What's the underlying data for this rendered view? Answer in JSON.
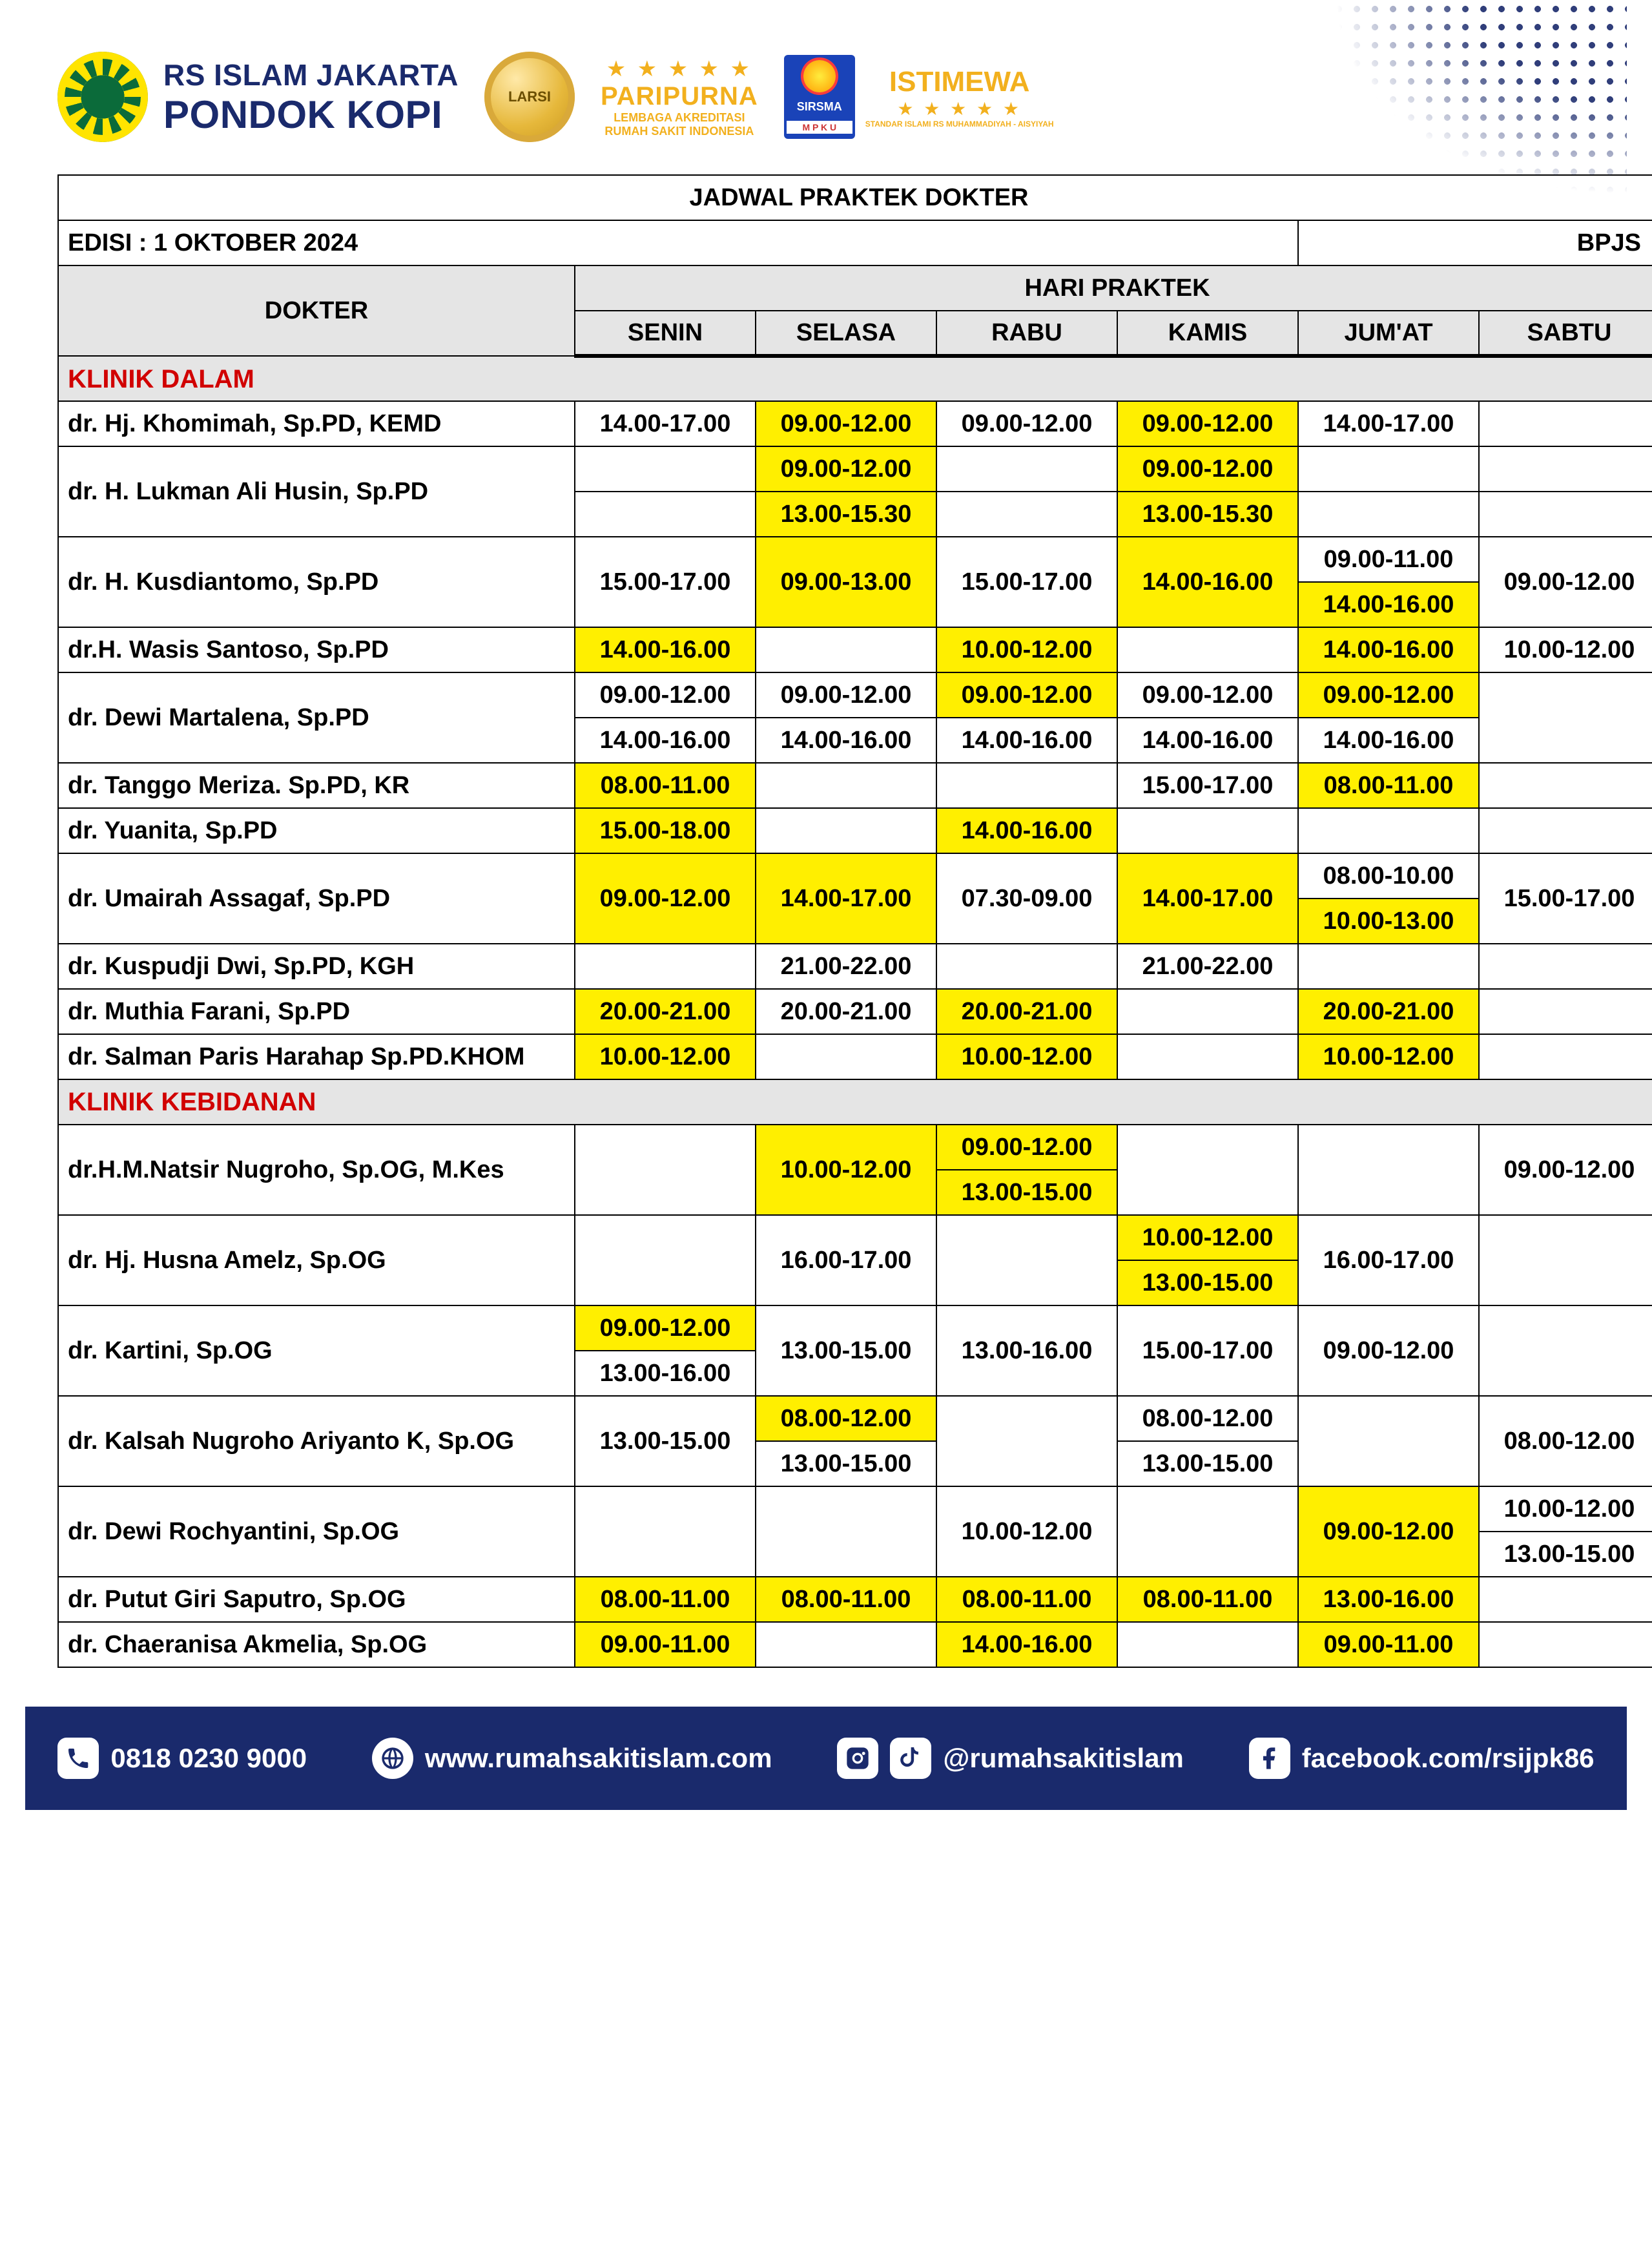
{
  "hospital": {
    "line1": "RS ISLAM JAKARTA",
    "line2": "PONDOK KOPI"
  },
  "accred": {
    "medal": "LARSI",
    "title": "PARIPURNA",
    "sub1": "LEMBAGA AKREDITASI",
    "sub2": "RUMAH SAKIT INDONESIA"
  },
  "sirsma": {
    "l1": "SIRSMA",
    "l2": "M P K U",
    "istimewa": "ISTIMEWA",
    "sub": "STANDAR ISLAMI RS MUHAMMADIYAH - AISYIYAH"
  },
  "table": {
    "title": "JADWAL PRAKTEK DOKTER",
    "edisi": "EDISI : 1 OKTOBER 2024",
    "bpjs": "BPJS",
    "dokter_hdr": "DOKTER",
    "hari_hdr": "HARI PRAKTEK",
    "days": [
      "SENIN",
      "SELASA",
      "RABU",
      "KAMIS",
      "JUM'AT",
      "SABTU"
    ],
    "highlight_color": "#ffef00",
    "header_bg": "#e5e5e5",
    "section_color": "#d10000",
    "sections": [
      {
        "name": "KLINIK DALAM",
        "rows": [
          {
            "doctor": "dr. Hj. Khomimah, Sp.PD, KEMD",
            "span": 1,
            "cells": [
              [
                "14.00-17.00",
                0
              ],
              [
                "09.00-12.00",
                1
              ],
              [
                "09.00-12.00",
                0
              ],
              [
                "09.00-12.00",
                1
              ],
              [
                "14.00-17.00",
                0
              ],
              [
                "",
                0
              ]
            ]
          },
          {
            "doctor": "dr. H. Lukman Ali Husin, Sp.PD",
            "span": 2,
            "lines": [
              [
                [
                  "",
                  0
                ],
                [
                  "09.00-12.00",
                  1
                ],
                [
                  "",
                  0
                ],
                [
                  "09.00-12.00",
                  1
                ],
                [
                  "",
                  0
                ],
                [
                  "",
                  0
                ]
              ],
              [
                [
                  "",
                  0
                ],
                [
                  "13.00-15.30",
                  1
                ],
                [
                  "",
                  0
                ],
                [
                  "13.00-15.30",
                  1
                ],
                [
                  "",
                  0
                ],
                [
                  "",
                  0
                ]
              ]
            ]
          },
          {
            "doctor": "dr. H. Kusdiantomo, Sp.PD",
            "span": 2,
            "lines": [
              [
                [
                  "15.00-17.00",
                  0,
                  2
                ],
                [
                  "09.00-13.00",
                  1,
                  2
                ],
                [
                  "15.00-17.00",
                  0,
                  2
                ],
                [
                  "14.00-16.00",
                  1,
                  2
                ],
                [
                  "09.00-11.00",
                  0
                ],
                [
                  "09.00-12.00",
                  0,
                  2
                ]
              ],
              [
                null,
                null,
                null,
                null,
                [
                  "14.00-16.00",
                  1
                ],
                null
              ]
            ]
          },
          {
            "doctor": "dr.H. Wasis Santoso, Sp.PD",
            "span": 1,
            "cells": [
              [
                "14.00-16.00",
                1
              ],
              [
                "",
                0
              ],
              [
                "10.00-12.00",
                1
              ],
              [
                "",
                0
              ],
              [
                "14.00-16.00",
                1
              ],
              [
                "10.00-12.00",
                0
              ]
            ]
          },
          {
            "doctor": "dr. Dewi Martalena, Sp.PD",
            "span": 2,
            "lines": [
              [
                [
                  "09.00-12.00",
                  0
                ],
                [
                  "09.00-12.00",
                  0
                ],
                [
                  "09.00-12.00",
                  1
                ],
                [
                  "09.00-12.00",
                  0
                ],
                [
                  "09.00-12.00",
                  1
                ],
                [
                  "",
                  0,
                  2
                ]
              ],
              [
                [
                  "14.00-16.00",
                  0
                ],
                [
                  "14.00-16.00",
                  0
                ],
                [
                  "14.00-16.00",
                  0
                ],
                [
                  "14.00-16.00",
                  0
                ],
                [
                  "14.00-16.00",
                  0
                ],
                null
              ]
            ]
          },
          {
            "doctor": "dr. Tanggo Meriza. Sp.PD, KR",
            "span": 1,
            "cells": [
              [
                "08.00-11.00",
                1
              ],
              [
                "",
                0
              ],
              [
                "",
                0
              ],
              [
                "15.00-17.00",
                0
              ],
              [
                "08.00-11.00",
                1
              ],
              [
                "",
                0
              ]
            ]
          },
          {
            "doctor": "dr. Yuanita, Sp.PD",
            "span": 1,
            "cells": [
              [
                "15.00-18.00",
                1
              ],
              [
                "",
                0
              ],
              [
                "14.00-16.00",
                1
              ],
              [
                "",
                0
              ],
              [
                "",
                0
              ],
              [
                "",
                0
              ]
            ]
          },
          {
            "doctor": "dr. Umairah Assagaf, Sp.PD",
            "span": 2,
            "lines": [
              [
                [
                  "09.00-12.00",
                  1,
                  2
                ],
                [
                  "14.00-17.00",
                  1,
                  2
                ],
                [
                  "07.30-09.00",
                  0,
                  2
                ],
                [
                  "14.00-17.00",
                  1,
                  2
                ],
                [
                  "08.00-10.00",
                  0
                ],
                [
                  "15.00-17.00",
                  0,
                  2
                ]
              ],
              [
                null,
                null,
                null,
                null,
                [
                  "10.00-13.00",
                  1
                ],
                null
              ]
            ]
          },
          {
            "doctor": "dr. Kuspudji Dwi, Sp.PD, KGH",
            "span": 1,
            "cells": [
              [
                "",
                0
              ],
              [
                "21.00-22.00",
                0
              ],
              [
                "",
                0
              ],
              [
                "21.00-22.00",
                0
              ],
              [
                "",
                0
              ],
              [
                "",
                0
              ]
            ]
          },
          {
            "doctor": "dr. Muthia Farani, Sp.PD",
            "span": 1,
            "cells": [
              [
                "20.00-21.00",
                1
              ],
              [
                "20.00-21.00",
                0
              ],
              [
                "20.00-21.00",
                1
              ],
              [
                "",
                0
              ],
              [
                "20.00-21.00",
                1
              ],
              [
                "",
                0
              ]
            ]
          },
          {
            "doctor": "dr. Salman Paris Harahap Sp.PD.KHOM",
            "span": 1,
            "cells": [
              [
                "10.00-12.00",
                1
              ],
              [
                "",
                0
              ],
              [
                "10.00-12.00",
                1
              ],
              [
                "",
                0
              ],
              [
                "10.00-12.00",
                1
              ],
              [
                "",
                0
              ]
            ]
          }
        ]
      },
      {
        "name": "KLINIK KEBIDANAN",
        "rows": [
          {
            "doctor": "dr.H.M.Natsir Nugroho, Sp.OG, M.Kes",
            "span": 2,
            "lines": [
              [
                [
                  "",
                  0,
                  2
                ],
                [
                  "10.00-12.00",
                  1,
                  2
                ],
                [
                  "09.00-12.00",
                  1
                ],
                [
                  "",
                  0,
                  2
                ],
                [
                  "",
                  0,
                  2
                ],
                [
                  "09.00-12.00",
                  0,
                  2
                ]
              ],
              [
                null,
                null,
                [
                  "13.00-15.00",
                  1
                ],
                null,
                null,
                null
              ]
            ]
          },
          {
            "doctor": "dr. Hj. Husna Amelz, Sp.OG",
            "span": 2,
            "lines": [
              [
                [
                  "",
                  0,
                  2
                ],
                [
                  "16.00-17.00",
                  0,
                  2
                ],
                [
                  "",
                  0,
                  2
                ],
                [
                  "10.00-12.00",
                  1
                ],
                [
                  "16.00-17.00",
                  0,
                  2
                ],
                [
                  "",
                  0,
                  2
                ]
              ],
              [
                null,
                null,
                null,
                [
                  "13.00-15.00",
                  1
                ],
                null,
                null
              ]
            ]
          },
          {
            "doctor": "dr. Kartini, Sp.OG",
            "span": 2,
            "lines": [
              [
                [
                  "09.00-12.00",
                  1
                ],
                [
                  "13.00-15.00",
                  0,
                  2
                ],
                [
                  "13.00-16.00",
                  0,
                  2
                ],
                [
                  "15.00-17.00",
                  0,
                  2
                ],
                [
                  "09.00-12.00",
                  0,
                  2
                ],
                [
                  "",
                  0,
                  2
                ]
              ],
              [
                [
                  "13.00-16.00",
                  0
                ],
                null,
                null,
                null,
                null,
                null
              ]
            ]
          },
          {
            "doctor": "dr. Kalsah Nugroho Ariyanto K, Sp.OG",
            "span": 2,
            "lines": [
              [
                [
                  "13.00-15.00",
                  0,
                  2
                ],
                [
                  "08.00-12.00",
                  1
                ],
                [
                  "",
                  0,
                  2
                ],
                [
                  "08.00-12.00",
                  0
                ],
                [
                  "",
                  0,
                  2
                ],
                [
                  "08.00-12.00",
                  0,
                  2
                ]
              ],
              [
                null,
                [
                  "13.00-15.00",
                  0
                ],
                null,
                [
                  "13.00-15.00",
                  0
                ],
                null,
                null
              ]
            ]
          },
          {
            "doctor": "dr. Dewi Rochyantini, Sp.OG",
            "span": 2,
            "lines": [
              [
                [
                  "",
                  0,
                  2
                ],
                [
                  "",
                  0,
                  2
                ],
                [
                  "10.00-12.00",
                  0,
                  2
                ],
                [
                  "",
                  0,
                  2
                ],
                [
                  "09.00-12.00",
                  1,
                  2
                ],
                [
                  "10.00-12.00",
                  0
                ]
              ],
              [
                null,
                null,
                null,
                null,
                null,
                [
                  "13.00-15.00",
                  0
                ]
              ]
            ]
          },
          {
            "doctor": "dr. Putut Giri Saputro, Sp.OG",
            "span": 1,
            "cells": [
              [
                "08.00-11.00",
                1
              ],
              [
                "08.00-11.00",
                1
              ],
              [
                "08.00-11.00",
                1
              ],
              [
                "08.00-11.00",
                1
              ],
              [
                "13.00-16.00",
                1
              ],
              [
                "",
                0
              ]
            ]
          },
          {
            "doctor": "dr. Chaeranisa Akmelia, Sp.OG",
            "span": 1,
            "cells": [
              [
                "09.00-11.00",
                1
              ],
              [
                "",
                0
              ],
              [
                "14.00-16.00",
                1
              ],
              [
                "",
                0
              ],
              [
                "09.00-11.00",
                1
              ],
              [
                "",
                0
              ]
            ]
          }
        ]
      }
    ]
  },
  "footer": {
    "phone": "0818 0230 9000",
    "web": "www.rumahsakitislam.com",
    "social": "@rumahsakitislam",
    "fb": "facebook.com/rsijpk86"
  }
}
